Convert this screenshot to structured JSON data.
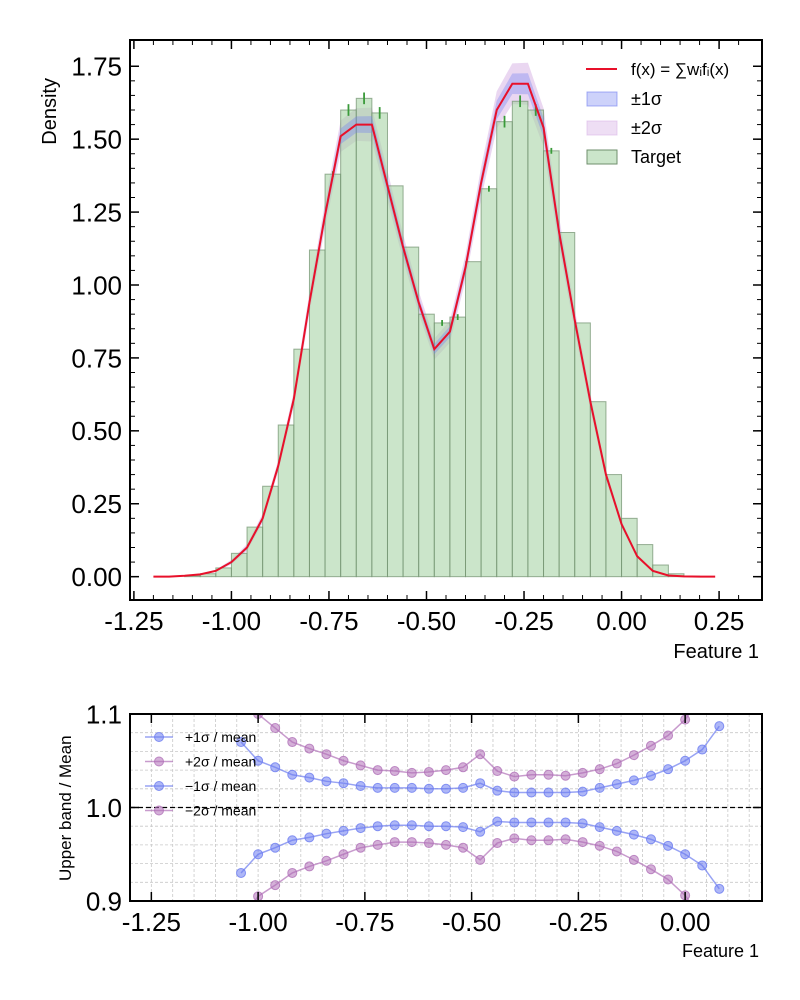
{
  "colors": {
    "hist_fill": "#a9d3a6",
    "hist_edge": "#6f8f6c",
    "errbar": "#3a9a3a",
    "fit": "#e8102a",
    "band1": "#6f7df0",
    "band2": "#d9b6e6",
    "ratio_band1": "#6c7cf0",
    "ratio_band2": "#b070b8"
  },
  "chart_data": [
    {
      "type": "bar",
      "ylabel": "Density",
      "xlabel": "Feature 1",
      "xlim": [
        -1.26,
        0.36
      ],
      "ylim": [
        -0.08,
        1.84
      ],
      "xticks": [
        "-1.25",
        "-1.00",
        "-0.75",
        "-0.50",
        "-0.25",
        "0.00",
        "0.25"
      ],
      "xtick_values": [
        -1.25,
        -1.0,
        -0.75,
        -0.5,
        -0.25,
        0.0,
        0.25
      ],
      "yticks": [
        "0.00",
        "0.25",
        "0.50",
        "0.75",
        "1.00",
        "1.25",
        "1.50",
        "1.75"
      ],
      "ytick_values": [
        0,
        0.25,
        0.5,
        0.75,
        1.0,
        1.25,
        1.5,
        1.75
      ],
      "legend_position": "top-right",
      "legend": {
        "fit": "f(x) = ∑wᵢfᵢ(x)",
        "band1": "±1σ",
        "band2": "±2σ",
        "target": "Target"
      },
      "bin_edges": [
        -1.2,
        -1.16,
        -1.12,
        -1.08,
        -1.04,
        -1.0,
        -0.96,
        -0.92,
        -0.88,
        -0.84,
        -0.8,
        -0.76,
        -0.72,
        -0.68,
        -0.64,
        -0.6,
        -0.56,
        -0.52,
        -0.48,
        -0.44,
        -0.4,
        -0.36,
        -0.32,
        -0.28,
        -0.24,
        -0.2,
        -0.16,
        -0.12,
        -0.08,
        -0.04,
        0.0,
        0.04,
        0.08,
        0.12,
        0.16,
        0.2,
        0.24
      ],
      "series": [
        {
          "name": "Target",
          "values": [
            0.0,
            0.0,
            0.003,
            0.01,
            0.03,
            0.08,
            0.17,
            0.31,
            0.52,
            0.78,
            1.12,
            1.38,
            1.6,
            1.64,
            1.59,
            1.34,
            1.13,
            0.9,
            0.87,
            0.89,
            1.08,
            1.33,
            1.56,
            1.63,
            1.6,
            1.46,
            1.18,
            0.87,
            0.6,
            0.35,
            0.2,
            0.11,
            0.04,
            0.01,
            0.002,
            0.0
          ],
          "errors": [
            0.0,
            0.0,
            0.0,
            0.0,
            0.0,
            0.0,
            0.0,
            0.0,
            0.0,
            0.0,
            0.0,
            0.01,
            0.02,
            0.02,
            0.02,
            0.0,
            0.0,
            0.0,
            0.01,
            0.01,
            0.0,
            0.01,
            0.02,
            0.02,
            0.02,
            0.01,
            0.0,
            0.0,
            0.0,
            0.0,
            0.0,
            0.0,
            0.0,
            0.0,
            0.0,
            0.0
          ]
        },
        {
          "name": "f(x) = ∑wᵢfᵢ(x)",
          "x": [
            -1.2,
            -1.16,
            -1.12,
            -1.08,
            -1.04,
            -1.0,
            -0.96,
            -0.92,
            -0.88,
            -0.84,
            -0.8,
            -0.76,
            -0.72,
            -0.68,
            -0.64,
            -0.6,
            -0.56,
            -0.52,
            -0.48,
            -0.44,
            -0.4,
            -0.36,
            -0.32,
            -0.28,
            -0.24,
            -0.2,
            -0.16,
            -0.12,
            -0.08,
            -0.04,
            0.0,
            0.04,
            0.08,
            0.12,
            0.16,
            0.2,
            0.24
          ],
          "y": [
            0.0,
            0.0,
            0.003,
            0.008,
            0.02,
            0.05,
            0.1,
            0.2,
            0.38,
            0.61,
            0.94,
            1.24,
            1.51,
            1.55,
            1.55,
            1.34,
            1.13,
            0.94,
            0.78,
            0.84,
            1.06,
            1.35,
            1.6,
            1.69,
            1.69,
            1.54,
            1.18,
            0.88,
            0.6,
            0.35,
            0.18,
            0.07,
            0.02,
            0.004,
            0.001,
            0.0,
            0.0
          ],
          "sigma1": [
            0.0,
            0.0,
            0.0,
            0.001,
            0.002,
            0.004,
            0.006,
            0.008,
            0.01,
            0.013,
            0.018,
            0.022,
            0.027,
            0.028,
            0.029,
            0.026,
            0.022,
            0.019,
            0.018,
            0.019,
            0.022,
            0.027,
            0.032,
            0.035,
            0.036,
            0.033,
            0.026,
            0.019,
            0.014,
            0.009,
            0.006,
            0.003,
            0.001,
            0.0,
            0.0,
            0.0,
            0.0
          ]
        }
      ]
    },
    {
      "type": "line",
      "ylabel": "Upper band / Mean",
      "xlabel": "Feature 1",
      "xlim": [
        -1.3,
        0.18
      ],
      "ylim": [
        0.9,
        1.1
      ],
      "xticks": [
        "-1.25",
        "-1.00",
        "-0.75",
        "-0.50",
        "-0.25",
        "0.00"
      ],
      "xtick_values": [
        -1.25,
        -1.0,
        -0.75,
        -0.5,
        -0.25,
        0.0
      ],
      "yticks": [
        "0.9",
        "1.0",
        "1.1"
      ],
      "ytick_values": [
        0.9,
        1.0,
        1.1
      ],
      "reference_line": 1.0,
      "legend_position": "top-left",
      "x": [
        -1.04,
        -1.0,
        -0.96,
        -0.92,
        -0.88,
        -0.84,
        -0.8,
        -0.76,
        -0.72,
        -0.68,
        -0.64,
        -0.6,
        -0.56,
        -0.52,
        -0.48,
        -0.44,
        -0.4,
        -0.36,
        -0.32,
        -0.28,
        -0.24,
        -0.2,
        -0.16,
        -0.12,
        -0.08,
        -0.04,
        0.0,
        0.04,
        0.08
      ],
      "series": [
        {
          "name": "+1σ / mean",
          "values": [
            1.07,
            1.05,
            1.043,
            1.035,
            1.032,
            1.028,
            1.026,
            1.023,
            1.021,
            1.021,
            1.021,
            1.02,
            1.02,
            1.021,
            1.026,
            1.018,
            1.016,
            1.016,
            1.016,
            1.016,
            1.017,
            1.021,
            1.025,
            1.029,
            1.034,
            1.041,
            1.05,
            1.062,
            1.087
          ]
        },
        {
          "name": "+2σ / mean",
          "values": [
            1.14,
            1.1,
            1.085,
            1.07,
            1.063,
            1.057,
            1.05,
            1.045,
            1.04,
            1.039,
            1.037,
            1.038,
            1.04,
            1.043,
            1.057,
            1.039,
            1.033,
            1.035,
            1.035,
            1.034,
            1.037,
            1.041,
            1.047,
            1.056,
            1.066,
            1.077,
            1.094,
            1.12,
            1.15
          ]
        },
        {
          "name": "−1σ / mean",
          "values": [
            0.93,
            0.95,
            0.957,
            0.965,
            0.968,
            0.972,
            0.975,
            0.978,
            0.98,
            0.981,
            0.981,
            0.98,
            0.98,
            0.979,
            0.974,
            0.985,
            0.984,
            0.984,
            0.984,
            0.984,
            0.983,
            0.979,
            0.975,
            0.971,
            0.966,
            0.959,
            0.95,
            0.938,
            0.913
          ]
        },
        {
          "name": "−2σ / mean",
          "values": [
            0.88,
            0.905,
            0.917,
            0.93,
            0.937,
            0.943,
            0.95,
            0.957,
            0.96,
            0.963,
            0.963,
            0.962,
            0.96,
            0.957,
            0.944,
            0.962,
            0.967,
            0.965,
            0.965,
            0.966,
            0.963,
            0.959,
            0.953,
            0.944,
            0.934,
            0.923,
            0.906,
            0.88,
            0.85
          ]
        }
      ]
    }
  ]
}
